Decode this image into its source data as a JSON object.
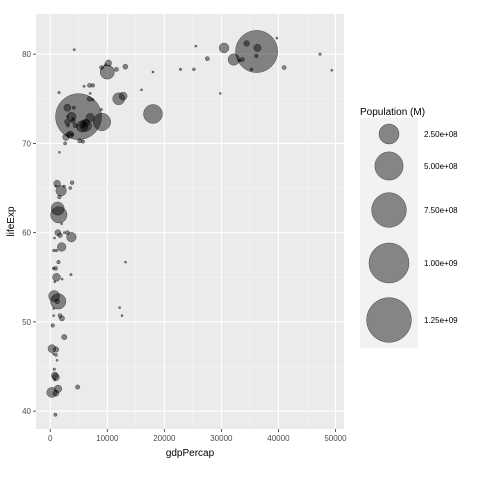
{
  "chart_data": {
    "type": "scatter",
    "title": "",
    "xlabel": "gdpPercap",
    "ylabel": "lifeExp",
    "xlim": [
      -2500,
      51500
    ],
    "ylim": [
      38,
      84.5
    ],
    "x_ticks": [
      0,
      10000,
      20000,
      30000,
      40000,
      50000
    ],
    "y_ticks": [
      40,
      50,
      60,
      70,
      80
    ],
    "grid": true,
    "legend": {
      "title": "Population (M)",
      "placement": "right",
      "entries": [
        {
          "label": "2.50e+08",
          "value": 250000000
        },
        {
          "label": "5.00e+08",
          "value": 500000000
        },
        {
          "label": "7.50e+08",
          "value": 750000000
        },
        {
          "label": "1.00e+09",
          "value": 1000000000
        },
        {
          "label": "1.25e+09",
          "value": 1250000000
        }
      ]
    },
    "point_color": "#000000",
    "point_opacity": 0.45,
    "series": [
      {
        "x": [
          974,
          5937,
          6223,
          4797,
          12779,
          34435,
          36126,
          29796,
          1391,
          33693,
          1441,
          3822,
          7446,
          12570,
          9065,
          1217,
          430,
          1713,
          2042,
          36319,
          706,
          1704,
          13172,
          4959,
          7006,
          986,
          278,
          3633,
          9645,
          2453,
          1544,
          11605,
          6880,
          25186,
          7458,
          22833,
          35278,
          2082,
          6025,
          6873,
          5581,
          5728,
          12154,
          641,
          690,
          33207,
          30470,
          13206,
          753,
          32170,
          1328,
          27538,
          5186,
          942,
          579,
          5728,
          39725,
          36181,
          18009,
          1902,
          2749,
          2451,
          4136,
          3708,
          2452,
          10000,
          3845,
          4200,
          1360,
          3730,
          25523,
          8948,
          7006,
          4000,
          1000,
          4000,
          10200,
          18000,
          1300,
          1200,
          3500,
          3000,
          2000,
          600,
          800,
          1500,
          800,
          2000,
          47300,
          49357,
          41000,
          12000,
          3500,
          800,
          2600,
          1200,
          6200,
          1100,
          9000,
          3000,
          16000,
          1000,
          3000,
          1600,
          600,
          1100,
          1600,
          3000,
          3100,
          1000,
          300,
          900,
          600,
          3200,
          4400
        ],
        "y": [
          43.8,
          76.4,
          72.3,
          42.7,
          75.3,
          81.2,
          79.8,
          75.6,
          52.3,
          79.4,
          56.7,
          65.6,
          74.9,
          50.7,
          72.4,
          52.3,
          49.6,
          59.7,
          50.4,
          80.7,
          44.7,
          50.7,
          78.6,
          73.0,
          72.9,
          65.2,
          42.1,
          55.3,
          78.8,
          48.3,
          75.7,
          78.3,
          76.5,
          78.3,
          76.5,
          78.3,
          78.3,
          54.8,
          72.2,
          74.99,
          71.9,
          71.9,
          51.6,
          58.0,
          52.9,
          79.3,
          80.7,
          56.7,
          59.4,
          79.4,
          60.0,
          79.5,
          70.3,
          56.0,
          46.4,
          70.2,
          81.8,
          80.3,
          73.3,
          64.7,
          70.7,
          65.2,
          74.0,
          59.5,
          60.0,
          78.0,
          71.0,
          80.5,
          42.5,
          73.0,
          80.9,
          73.8,
          75.6,
          72.8,
          46.9,
          72.5,
          79.0,
          78.0,
          62.7,
          45.7,
          71.0,
          72.4,
          58.4,
          50.7,
          44.0,
          62.0,
          54.5,
          61.0,
          80.0,
          78.2,
          78.5,
          75.0,
          65.0,
          43.5,
          70.0,
          65.5,
          72.0,
          55.0,
          78.5,
          73.0,
          76.0,
          42.0,
          60.0,
          64.0,
          56.0,
          58.0,
          69.0,
          74.0,
          72.0,
          46.3,
          47.0,
          39.6,
          51.5,
          71.0,
          72.0
        ],
        "pop_m": [
          31.9,
          3.6,
          33.3,
          12.4,
          40.3,
          20.4,
          8.2,
          0.7,
          150.4,
          10.4,
          8.1,
          9.1,
          4.6,
          1.6,
          190.0,
          14.3,
          8.4,
          14.1,
          17.7,
          33.4,
          4.4,
          10.2,
          16.3,
          1318.7,
          44.2,
          0.7,
          64.6,
          3.8,
          4.1,
          18.0,
          4.5,
          11.4,
          10.2,
          5.5,
          9.0,
          4.1,
          5.4,
          0.5,
          9.3,
          13.8,
          80.3,
          6.9,
          0.6,
          4.9,
          76.5,
          5.2,
          61.1,
          1.5,
          1.7,
          82.4,
          22.9,
          10.7,
          12.6,
          9.9,
          1.5,
          7.5,
          0.3,
          1110.4,
          223.5,
          69.5,
          27.5,
          4.1,
          6.4,
          58.1,
          2.8,
          127.5,
          6.1,
          3.3,
          35.6,
          49.0,
          1.1,
          3.9,
          3.2,
          2.8,
          19.2,
          12.4,
          24.8,
          3.0,
          108.7,
          2.9,
          31.0,
          19.9,
          47.8,
          2.1,
          28.9,
          169.3,
          3.2,
          2.2,
          4.6,
          3.2,
          11.0,
          91.1,
          6.1,
          3.0,
          6.7,
          28.7,
          86.9,
          38.5,
          10.6,
          0.8,
          0.8,
          22.3,
          10.2,
          8.9,
          5.0,
          4.6,
          1.7,
          32.0,
          6.0,
          6.0,
          40.0,
          7.0,
          2.4,
          11.7,
          12.3
        ]
      }
    ]
  }
}
